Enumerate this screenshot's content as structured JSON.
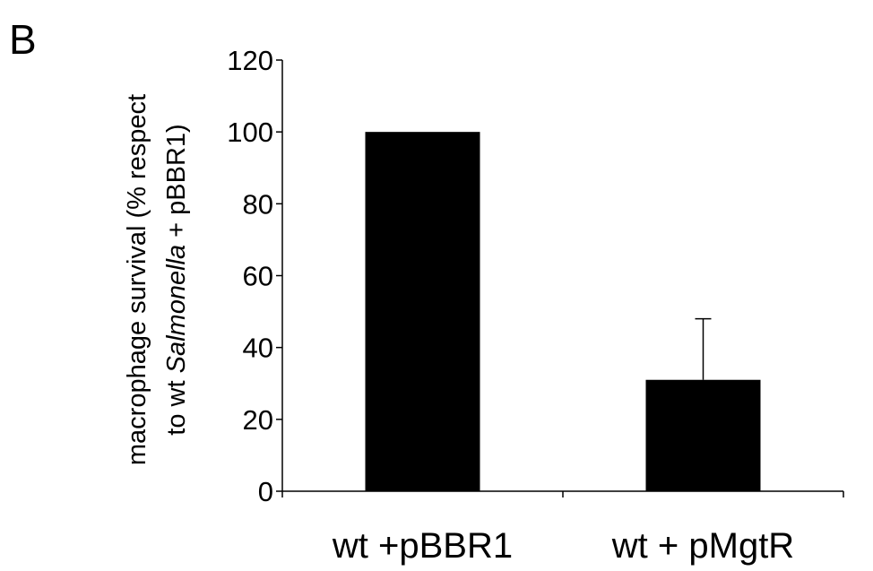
{
  "panel_label": "B",
  "chart_data": {
    "type": "bar",
    "categories": [
      "wt +pBBR1",
      "wt + pMgtR"
    ],
    "values": [
      100,
      31
    ],
    "error_bars": [
      0,
      17
    ],
    "ylim": [
      0,
      120
    ],
    "yticks": [
      0,
      20,
      40,
      60,
      80,
      100,
      120
    ],
    "ytick_labels": [
      "0",
      "20",
      "40",
      "60",
      "80",
      "100",
      "120"
    ],
    "xlabel": "",
    "ylabel": {
      "line1": "macrophage survival (% respect",
      "line2_prefix": "to wt ",
      "line2_italic": "Salmonella",
      "line2_suffix": " + pBBR1)"
    },
    "bar_color": "#000000",
    "grid": false,
    "legend": "none"
  }
}
